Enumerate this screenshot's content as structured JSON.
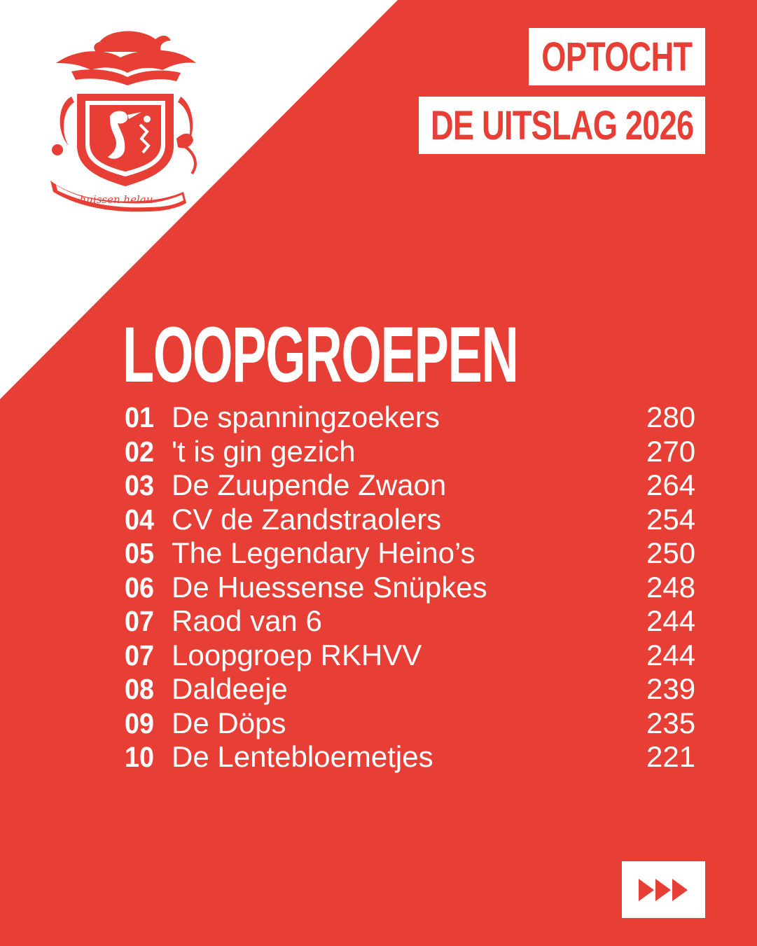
{
  "colors": {
    "accent": "#e73f36",
    "background": "#ffffff",
    "text_on_accent": "#ffffff"
  },
  "logo": {
    "icon": "coat-of-arms-icon",
    "ribbon_text": "huissen helau"
  },
  "header": {
    "tag_line_1": "OPTOCHT",
    "tag_line_2": "DE UITSLAG 2026"
  },
  "section": {
    "title": "LOOPGROEPEN"
  },
  "results": [
    {
      "rank": "01",
      "name": "De spanningzoekers",
      "score": "280"
    },
    {
      "rank": "02",
      "name": "'t is gin gezich",
      "score": "270"
    },
    {
      "rank": "03",
      "name": "De Zuupende Zwaon",
      "score": "264"
    },
    {
      "rank": "04",
      "name": "CV de Zandstraolers",
      "score": "254"
    },
    {
      "rank": "05",
      "name": "The Legendary Heino’s",
      "score": "250"
    },
    {
      "rank": "06",
      "name": "De Huessense Snüpkes",
      "score": "248"
    },
    {
      "rank": "07",
      "name": "Raod van 6",
      "score": "244"
    },
    {
      "rank": "07",
      "name": "Loopgroep RKHVV",
      "score": "244"
    },
    {
      "rank": "08",
      "name": "Daldeeje",
      "score": "239"
    },
    {
      "rank": "09",
      "name": "De Döps",
      "score": "235"
    },
    {
      "rank": "10",
      "name": "De Lentebloemetjes",
      "score": "221"
    }
  ],
  "navigation": {
    "next_icon": "fast-forward-icon"
  }
}
